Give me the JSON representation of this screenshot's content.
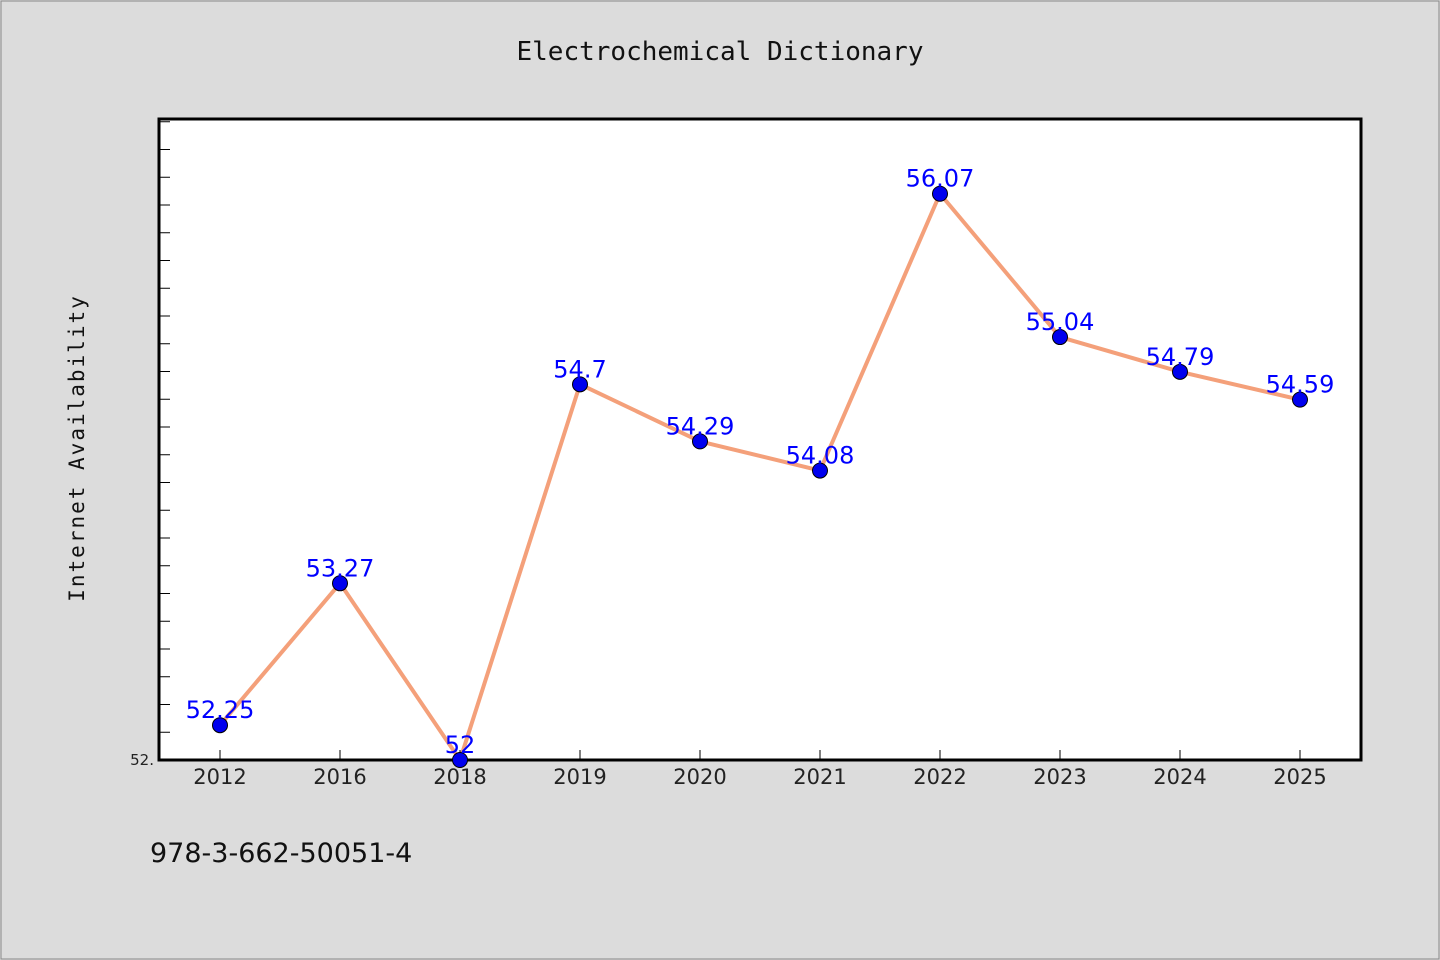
{
  "chart_data": {
    "type": "line",
    "title": "Electrochemical Dictionary",
    "xlabel": "",
    "ylabel": "Internet Availability",
    "categories": [
      "2012",
      "2016",
      "2018",
      "2019",
      "2020",
      "2021",
      "2022",
      "2023",
      "2024",
      "2025"
    ],
    "series": [
      {
        "values": [
          52.25,
          53.27,
          52.0,
          54.7,
          54.29,
          54.08,
          56.07,
          55.04,
          54.79,
          54.59
        ],
        "labels": [
          "52.25",
          "53.27",
          "52",
          "54.7",
          "54.29",
          "54.08",
          "56.07",
          "55.04",
          "54.79",
          "54.59"
        ],
        "line_color": "#f4a07a",
        "marker_color": "#0000ee"
      }
    ],
    "ylim": [
      52.0,
      56.6
    ],
    "y_tick_labels": [
      "52."
    ],
    "grid": false,
    "legend": "none"
  },
  "footer": {
    "isbn": "978-3-662-50051-4"
  },
  "colors": {
    "background": "#dcdcdc",
    "plot_area": "#ffffff",
    "data_label": "#0000ff"
  }
}
